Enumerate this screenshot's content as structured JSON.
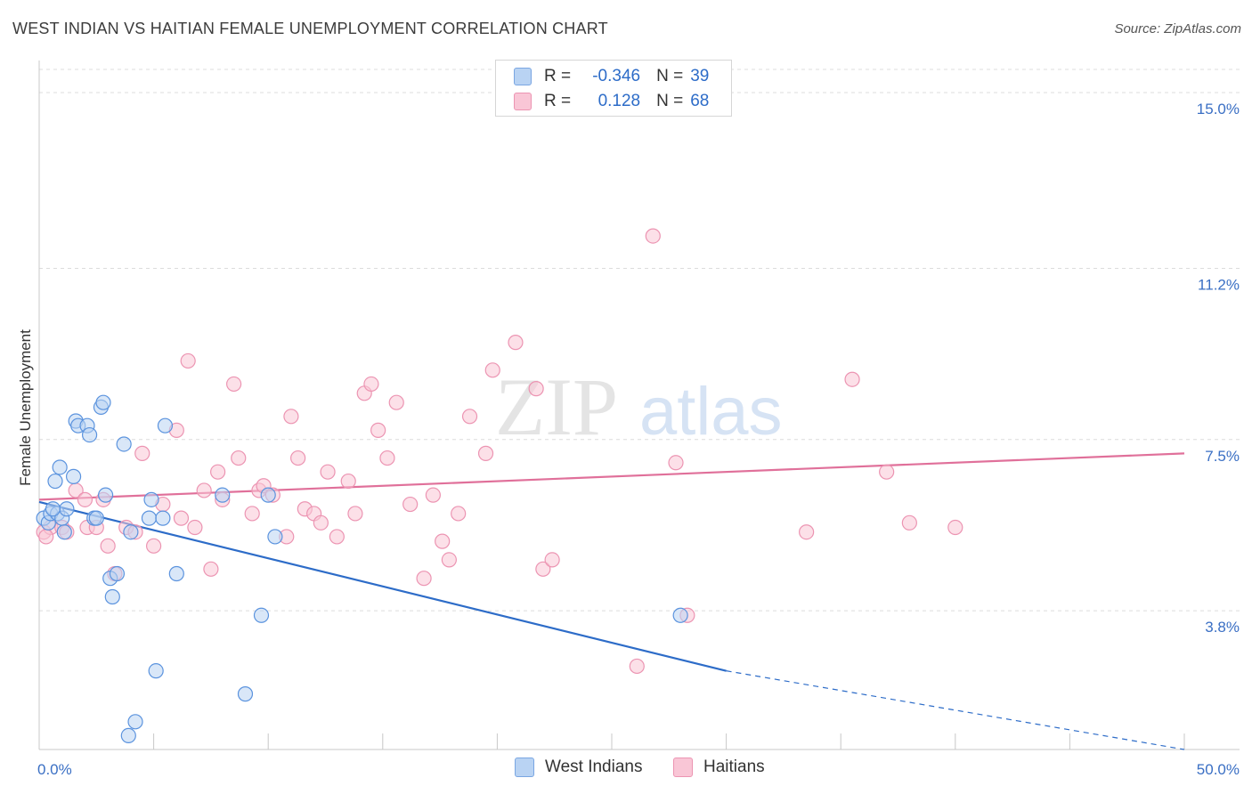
{
  "header": {
    "title": "WEST INDIAN VS HAITIAN FEMALE UNEMPLOYMENT CORRELATION CHART",
    "source": "Source: ZipAtlas.com"
  },
  "legend": {
    "r_label": "R =",
    "n_label": "N =",
    "rows": [
      {
        "r": "-0.346",
        "n": "39",
        "color": "#b9d3f3",
        "border": "#7aa6e2"
      },
      {
        "r": "0.128",
        "n": "68",
        "color": "#f9c6d6",
        "border": "#ec94b2"
      }
    ]
  },
  "watermark": {
    "zip": "ZIP",
    "atlas": "atlas"
  },
  "chart_data": {
    "type": "scatter",
    "title": "WEST INDIAN VS HAITIAN FEMALE UNEMPLOYMENT CORRELATION CHART",
    "xlabel": "",
    "ylabel": "Female Unemployment",
    "xlim": [
      0,
      50
    ],
    "ylim": [
      0.8,
      15.5
    ],
    "x_tick_labels": [
      "0.0%",
      "50.0%"
    ],
    "y_ticks": [
      3.8,
      7.5,
      11.2,
      15.0
    ],
    "y_tick_labels": [
      "3.8%",
      "7.5%",
      "11.2%",
      "15.0%"
    ],
    "grid": true,
    "series": [
      {
        "name": "West Indians",
        "color": "#5b93de",
        "fill": "#b9d3f3",
        "points": [
          [
            0.2,
            5.8
          ],
          [
            0.4,
            5.7
          ],
          [
            0.5,
            5.9
          ],
          [
            0.7,
            6.6
          ],
          [
            0.8,
            5.9
          ],
          [
            0.9,
            6.9
          ],
          [
            1.0,
            5.8
          ],
          [
            1.1,
            5.5
          ],
          [
            1.2,
            6.0
          ],
          [
            1.5,
            6.7
          ],
          [
            1.6,
            7.9
          ],
          [
            1.7,
            7.8
          ],
          [
            2.1,
            7.8
          ],
          [
            2.2,
            7.6
          ],
          [
            2.4,
            5.8
          ],
          [
            2.5,
            5.8
          ],
          [
            2.7,
            8.2
          ],
          [
            2.8,
            8.3
          ],
          [
            2.9,
            6.3
          ],
          [
            3.1,
            4.5
          ],
          [
            3.2,
            4.1
          ],
          [
            3.4,
            4.6
          ],
          [
            3.7,
            7.4
          ],
          [
            3.9,
            1.1
          ],
          [
            4.0,
            5.5
          ],
          [
            4.2,
            1.4
          ],
          [
            4.8,
            5.8
          ],
          [
            4.9,
            6.2
          ],
          [
            5.1,
            2.5
          ],
          [
            5.4,
            5.8
          ],
          [
            5.5,
            7.8
          ],
          [
            6.0,
            4.6
          ],
          [
            8.0,
            6.3
          ],
          [
            9.0,
            2.0
          ],
          [
            9.7,
            3.7
          ],
          [
            10.0,
            6.3
          ],
          [
            10.3,
            5.4
          ],
          [
            28.0,
            3.7
          ],
          [
            0.6,
            6.0
          ]
        ]
      },
      {
        "name": "Haitians",
        "color": "#ec94b2",
        "fill": "#f9c6d6",
        "points": [
          [
            0.2,
            5.5
          ],
          [
            0.5,
            5.6
          ],
          [
            1.0,
            5.6
          ],
          [
            1.2,
            5.5
          ],
          [
            1.6,
            6.4
          ],
          [
            2.0,
            6.2
          ],
          [
            2.1,
            5.6
          ],
          [
            2.5,
            5.6
          ],
          [
            2.8,
            6.2
          ],
          [
            3.0,
            5.2
          ],
          [
            3.3,
            4.6
          ],
          [
            3.8,
            5.6
          ],
          [
            4.2,
            5.5
          ],
          [
            4.5,
            7.2
          ],
          [
            5.0,
            5.2
          ],
          [
            5.4,
            6.1
          ],
          [
            6.0,
            7.7
          ],
          [
            6.2,
            5.8
          ],
          [
            6.5,
            9.2
          ],
          [
            6.8,
            5.6
          ],
          [
            7.2,
            6.4
          ],
          [
            7.5,
            4.7
          ],
          [
            7.8,
            6.8
          ],
          [
            8.0,
            6.2
          ],
          [
            8.5,
            8.7
          ],
          [
            8.7,
            7.1
          ],
          [
            9.3,
            5.9
          ],
          [
            9.6,
            6.4
          ],
          [
            9.8,
            6.5
          ],
          [
            10.2,
            6.3
          ],
          [
            10.8,
            5.4
          ],
          [
            11.0,
            8.0
          ],
          [
            11.3,
            7.1
          ],
          [
            11.6,
            6.0
          ],
          [
            12.0,
            5.9
          ],
          [
            12.3,
            5.7
          ],
          [
            12.6,
            6.8
          ],
          [
            13.0,
            5.4
          ],
          [
            13.5,
            6.6
          ],
          [
            13.8,
            5.9
          ],
          [
            14.2,
            8.5
          ],
          [
            14.5,
            8.7
          ],
          [
            14.8,
            7.7
          ],
          [
            15.2,
            7.1
          ],
          [
            15.6,
            8.3
          ],
          [
            16.2,
            6.1
          ],
          [
            16.8,
            4.5
          ],
          [
            17.2,
            6.3
          ],
          [
            17.6,
            5.3
          ],
          [
            17.9,
            4.9
          ],
          [
            18.3,
            5.9
          ],
          [
            18.8,
            8.0
          ],
          [
            19.5,
            7.2
          ],
          [
            19.8,
            9.0
          ],
          [
            20.8,
            9.6
          ],
          [
            21.7,
            8.6
          ],
          [
            22.0,
            4.7
          ],
          [
            22.4,
            4.9
          ],
          [
            26.1,
            2.6
          ],
          [
            26.8,
            11.9
          ],
          [
            28.3,
            3.7
          ],
          [
            27.8,
            7.0
          ],
          [
            33.5,
            5.5
          ],
          [
            35.5,
            8.8
          ],
          [
            37.0,
            6.8
          ],
          [
            38.0,
            5.7
          ],
          [
            40.0,
            5.6
          ],
          [
            0.3,
            5.4
          ]
        ]
      }
    ],
    "trendlines": [
      {
        "series": "West Indians",
        "x0": 0,
        "y0": 6.15,
        "x1": 30,
        "y1": 2.5,
        "dashed_to_x": 50,
        "dashed_to_y": 0.8
      },
      {
        "series": "Haitians",
        "x0": 0,
        "y0": 6.2,
        "x1": 50,
        "y1": 7.2
      }
    ]
  }
}
